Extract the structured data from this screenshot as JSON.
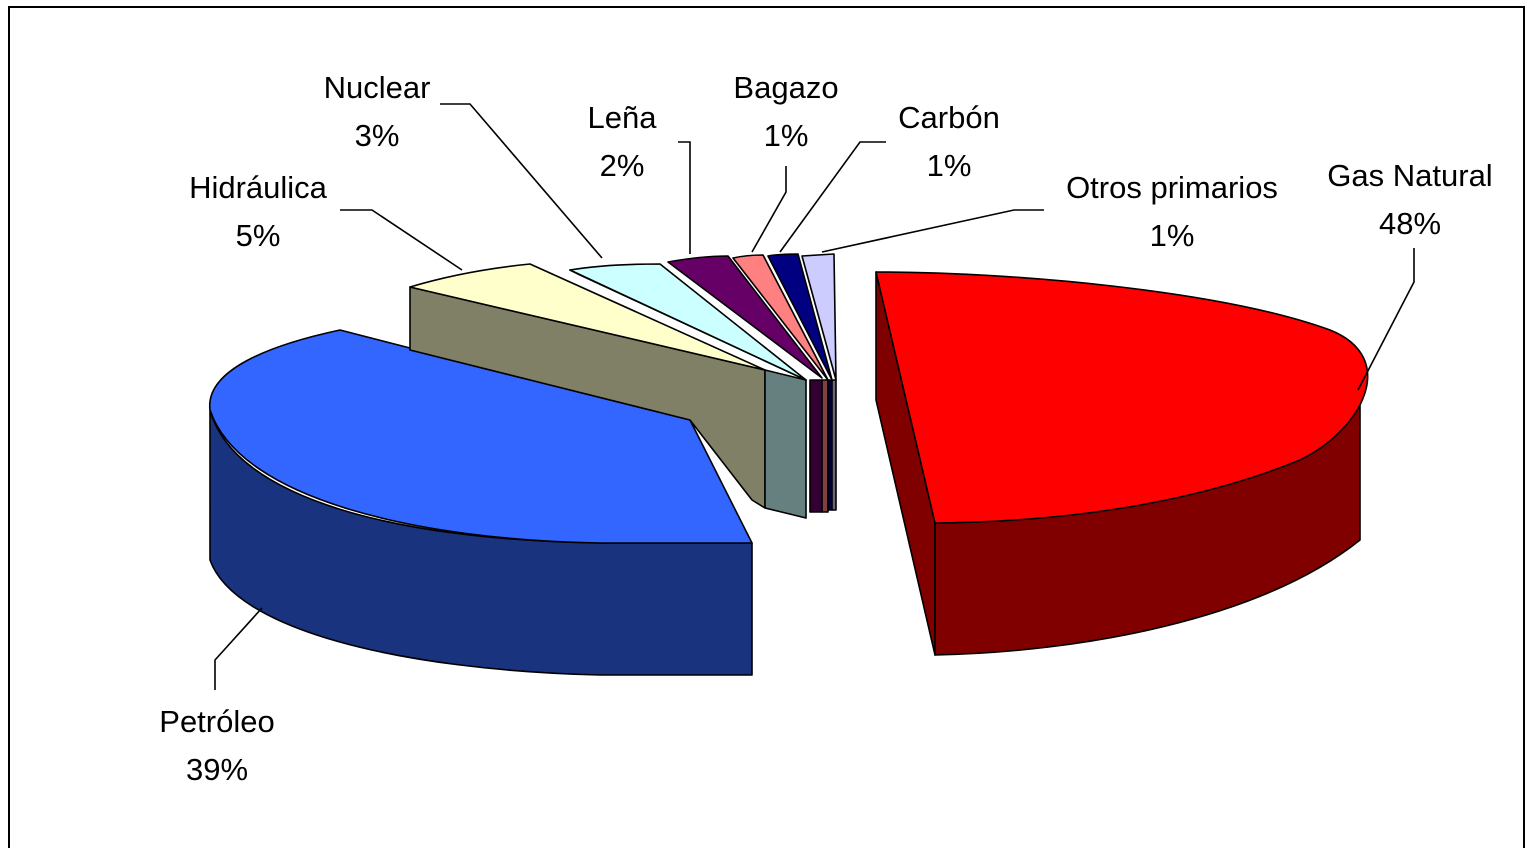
{
  "chart_data": {
    "type": "pie",
    "is_3d": true,
    "exploded": true,
    "title": "",
    "legend": "none",
    "slices": [
      {
        "label": "Gas Natural",
        "value": 48,
        "display": "48%",
        "color": "#ff0000",
        "shade": "#800000"
      },
      {
        "label": "Petróleo",
        "value": 39,
        "display": "39%",
        "color": "#3366ff",
        "shade": "#1a337f"
      },
      {
        "label": "",
        "value": 0,
        "display": "",
        "color": "#808066",
        "shade": "#808066"
      },
      {
        "label": "Hidráulica",
        "value": 5,
        "display": "5%",
        "color": "#ffffcc",
        "shade": "#7f7f66"
      },
      {
        "label": "Nuclear",
        "value": 3,
        "display": "3%",
        "color": "#ccffff",
        "shade": "#668080"
      },
      {
        "label": "Leña",
        "value": 2,
        "display": "2%",
        "color": "#660066",
        "shade": "#330033"
      },
      {
        "label": "Bagazo",
        "value": 1,
        "display": "1%",
        "color": "#ff8080",
        "shade": "#804040"
      },
      {
        "label": "Carbón",
        "value": 1,
        "display": "1%",
        "color": "#000080",
        "shade": "#000040"
      },
      {
        "label": "Otros primarios",
        "value": 1,
        "display": "1%",
        "color": "#ccccff",
        "shade": "#666680"
      }
    ]
  }
}
